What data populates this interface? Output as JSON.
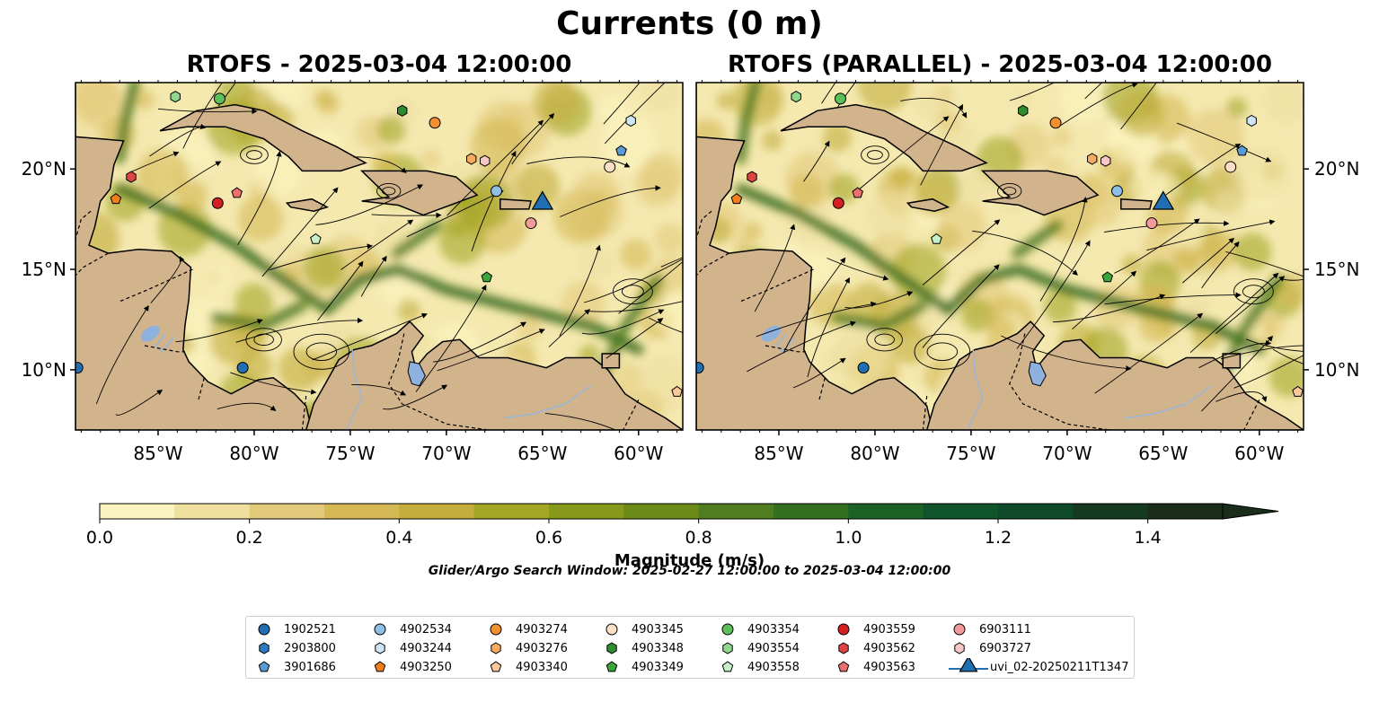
{
  "suptitle": "Currents (0 m)",
  "panels": [
    {
      "title": "RTOFS - 2025-03-04 12:00:00"
    },
    {
      "title": "RTOFS (PARALLEL) - 2025-03-04 12:00:00"
    }
  ],
  "search_window": "Glider/Argo Search Window: 2025-02-27 12:00:00 to 2025-03-04 12:00:00",
  "colors": {
    "land": "#d2b48c",
    "water_fill": "#f5e9b0",
    "lake": "#8fb1dd",
    "strong_current": "#0b5e2e"
  },
  "chart_data": {
    "type": "heatmap",
    "map_extent": {
      "lon": [
        -89.3,
        -57.7
      ],
      "lat": [
        7.0,
        24.3
      ]
    },
    "x_ticks": [
      "85°W",
      "80°W",
      "75°W",
      "70°W",
      "65°W",
      "60°W"
    ],
    "x_tick_values": [
      -85,
      -80,
      -75,
      -70,
      -65,
      -60
    ],
    "y_ticks": [
      "10°N",
      "15°N",
      "20°N"
    ],
    "y_tick_values": [
      10,
      15,
      20
    ],
    "colorbar": {
      "label": "Magnitude (m/s)",
      "range": [
        0.0,
        1.5
      ],
      "ticks": [
        "0.0",
        "0.2",
        "0.4",
        "0.6",
        "0.8",
        "1.0",
        "1.2",
        "1.4"
      ],
      "tick_values": [
        0.0,
        0.2,
        0.4,
        0.6,
        0.8,
        1.0,
        1.2,
        1.4
      ],
      "levels": [
        0.0,
        0.1,
        0.2,
        0.3,
        0.4,
        0.5,
        0.6,
        0.7,
        0.8,
        0.9,
        1.0,
        1.1,
        1.2,
        1.3,
        1.4,
        1.5
      ],
      "colors": [
        "#fbf4c0",
        "#efe0a0",
        "#e3ca7a",
        "#d4b955",
        "#c2ad3d",
        "#a3a524",
        "#86991a",
        "#6b8a18",
        "#4f7d1f",
        "#33701f",
        "#1b6224",
        "#0f542a",
        "#0e4a2a",
        "#143a22",
        "#1a2c1a"
      ],
      "extend": "max"
    },
    "platforms": [
      {
        "id": "1902521",
        "marker": "circle",
        "color": "#1f6fb2",
        "positions": [
          [
            -89.2,
            10.1
          ],
          [
            -80.6,
            10.1
          ]
        ]
      },
      {
        "id": "2903800",
        "marker": "hexagon",
        "color": "#2a7abf",
        "positions": []
      },
      {
        "id": "3901686",
        "marker": "pentagon",
        "color": "#5a9bd5",
        "positions": [
          [
            -60.9,
            20.9
          ]
        ]
      },
      {
        "id": "4902534",
        "marker": "circle",
        "color": "#8ec0e6",
        "positions": [
          [
            -67.4,
            18.9
          ]
        ]
      },
      {
        "id": "4903244",
        "marker": "hexagon",
        "color": "#cfe4f5",
        "positions": [
          [
            -60.4,
            22.4
          ]
        ]
      },
      {
        "id": "4903250",
        "marker": "pentagon",
        "color": "#f07f1b",
        "positions": [
          [
            -87.2,
            18.5
          ]
        ]
      },
      {
        "id": "4903274",
        "marker": "circle",
        "color": "#f28f30",
        "positions": [
          [
            -70.6,
            22.3
          ]
        ]
      },
      {
        "id": "4903276",
        "marker": "hexagon",
        "color": "#f6a960",
        "positions": [
          [
            -68.7,
            20.5
          ]
        ]
      },
      {
        "id": "4903340",
        "marker": "pentagon",
        "color": "#f9c79a",
        "positions": [
          [
            -58.0,
            8.9
          ]
        ]
      },
      {
        "id": "4903345",
        "marker": "circle",
        "color": "#fde0c5",
        "positions": [
          [
            -61.5,
            20.1
          ]
        ]
      },
      {
        "id": "4903348",
        "marker": "hexagon",
        "color": "#2e8b2e",
        "positions": [
          [
            -72.3,
            22.9
          ]
        ]
      },
      {
        "id": "4903349",
        "marker": "pentagon",
        "color": "#3aa63a",
        "positions": [
          [
            -67.9,
            14.6
          ]
        ]
      },
      {
        "id": "4903354",
        "marker": "circle",
        "color": "#5cbf5c",
        "positions": [
          [
            -81.8,
            23.5
          ]
        ]
      },
      {
        "id": "4903554",
        "marker": "hexagon",
        "color": "#8fd68f",
        "positions": [
          [
            -84.1,
            23.6
          ]
        ]
      },
      {
        "id": "4903558",
        "marker": "pentagon",
        "color": "#c9efc9",
        "positions": [
          [
            -76.8,
            16.5
          ]
        ]
      },
      {
        "id": "4903559",
        "marker": "circle",
        "color": "#d42020",
        "positions": [
          [
            -81.9,
            18.3
          ]
        ]
      },
      {
        "id": "4903562",
        "marker": "hexagon",
        "color": "#df4444",
        "positions": [
          [
            -86.4,
            19.6
          ]
        ]
      },
      {
        "id": "4903563",
        "marker": "pentagon",
        "color": "#ec6f6f",
        "positions": [
          [
            -80.9,
            18.8
          ]
        ]
      },
      {
        "id": "6903111",
        "marker": "circle",
        "color": "#f39a9a",
        "positions": [
          [
            -65.6,
            17.3
          ]
        ]
      },
      {
        "id": "6903727",
        "marker": "hexagon",
        "color": "#f7c6c6",
        "positions": [
          [
            -68.0,
            20.4
          ]
        ]
      },
      {
        "id": "uvi_02-20250211T1347",
        "marker": "triangle",
        "color": "#1f6fb2",
        "positions": [
          [
            -65.0,
            18.2
          ]
        ]
      }
    ]
  }
}
